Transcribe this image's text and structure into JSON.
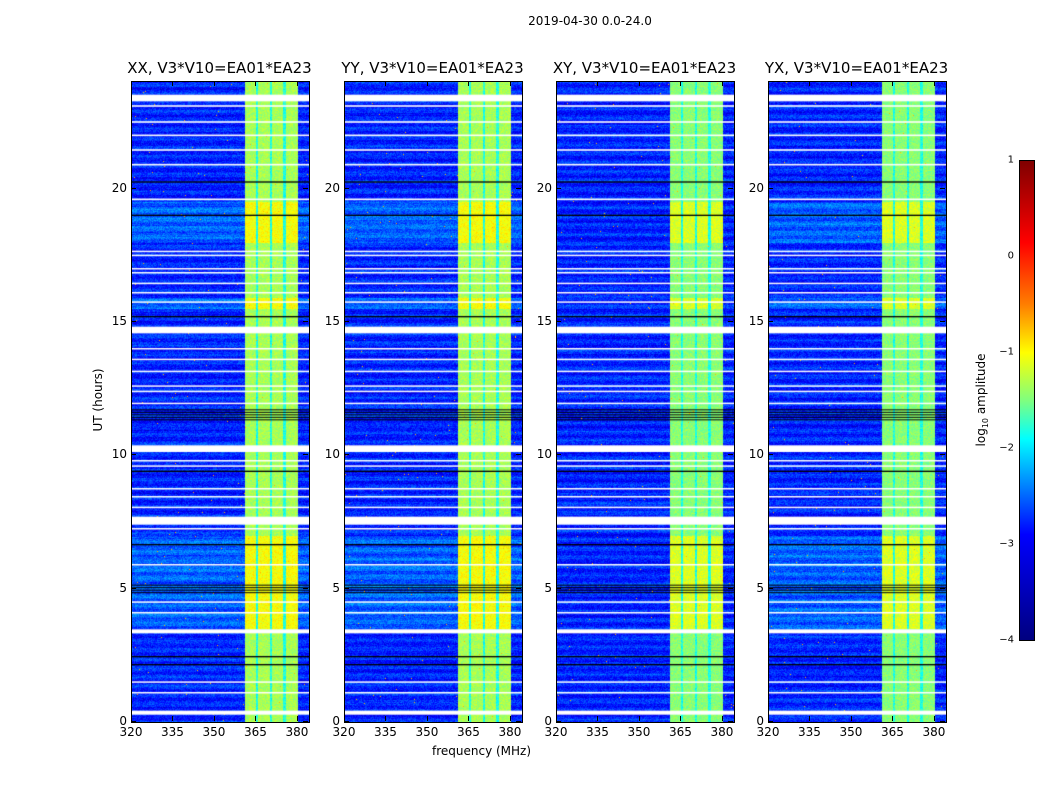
{
  "chart_data": {
    "type": "heatmap",
    "title": "2019-04-30 0.0-24.0",
    "xlabel": "frequency (MHz)",
    "ylabel": "UT (hours)",
    "xlim": [
      320,
      384
    ],
    "ylim": [
      0,
      24
    ],
    "xticks": [
      320,
      335,
      350,
      365,
      380
    ],
    "yticks": [
      0,
      5,
      10,
      15,
      20
    ],
    "panels": [
      {
        "title": "XX, V3*V10=EA01*EA23"
      },
      {
        "title": "YY, V3*V10=EA01*EA23"
      },
      {
        "title": "XY, V3*V10=EA01*EA23"
      },
      {
        "title": "YX, V3*V10=EA01*EA23"
      }
    ],
    "colorbar": {
      "label_prefix": "log",
      "label_sub": "10",
      "label_suffix": " amplitude",
      "range": [
        -4,
        1
      ],
      "ticks": [
        "1",
        "0",
        "−1",
        "−2",
        "−3",
        "−4"
      ],
      "colormap": "jet"
    },
    "background_log_amplitude": -3.2,
    "bright_band_mhz": [
      360.5,
      380
    ],
    "band_gaps_mhz": [
      365,
      370,
      375
    ],
    "flagged_white_hours": [
      [
        23.4,
        0.25
      ],
      [
        23.1,
        0.06
      ],
      [
        22.5,
        0.06
      ],
      [
        22.0,
        0.06
      ],
      [
        21.45,
        0.06
      ],
      [
        20.9,
        0.06
      ],
      [
        19.6,
        0.06
      ],
      [
        17.65,
        0.05
      ],
      [
        17.5,
        0.05
      ],
      [
        17.0,
        0.05
      ],
      [
        16.85,
        0.05
      ],
      [
        16.45,
        0.05
      ],
      [
        16.1,
        0.05
      ],
      [
        15.75,
        0.05
      ],
      [
        14.7,
        0.25
      ],
      [
        14.0,
        0.05
      ],
      [
        13.6,
        0.05
      ],
      [
        13.15,
        0.05
      ],
      [
        12.6,
        0.05
      ],
      [
        12.4,
        0.05
      ],
      [
        11.95,
        0.05
      ],
      [
        10.25,
        0.25
      ],
      [
        9.8,
        0.05
      ],
      [
        9.6,
        0.05
      ],
      [
        8.75,
        0.05
      ],
      [
        8.45,
        0.05
      ],
      [
        8.05,
        0.05
      ],
      [
        7.55,
        0.3
      ],
      [
        7.25,
        0.05
      ],
      [
        5.9,
        0.05
      ],
      [
        4.5,
        0.05
      ],
      [
        4.1,
        0.05
      ],
      [
        3.4,
        0.15
      ],
      [
        1.5,
        0.05
      ],
      [
        1.1,
        0.05
      ],
      [
        0.35,
        0.15
      ]
    ],
    "dark_line_hours": [
      [
        20.25,
        0.05
      ],
      [
        19.0,
        0.05
      ],
      [
        15.2,
        0.05
      ],
      [
        11.5,
        0.45
      ],
      [
        9.4,
        0.05
      ],
      [
        6.65,
        0.05
      ],
      [
        5.0,
        0.3
      ],
      [
        2.45,
        0.05
      ],
      [
        2.15,
        0.05
      ]
    ],
    "bright_periods_hours": [
      [
        18.0,
        19.5
      ],
      [
        15.5,
        15.9
      ],
      [
        3.5,
        7.0
      ]
    ]
  }
}
